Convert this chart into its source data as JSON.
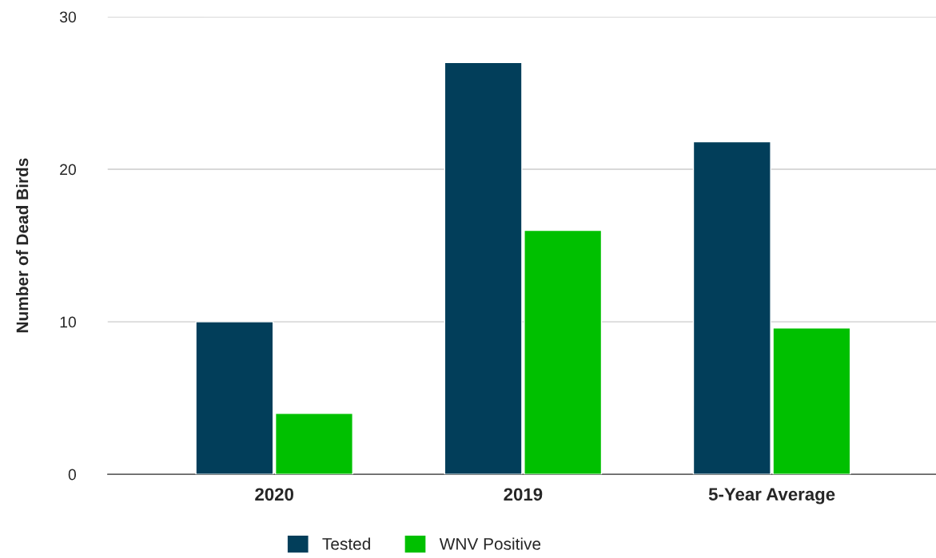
{
  "chart_data": {
    "type": "bar",
    "ylabel": "Number of Dead Birds",
    "categories": [
      "2020",
      "2019",
      "5-Year Average"
    ],
    "series": [
      {
        "name": "Tested",
        "color": "#023e5a",
        "values": [
          10,
          27,
          21.8
        ]
      },
      {
        "name": "WNV Positive",
        "color": "#00c000",
        "values": [
          4,
          16,
          9.6
        ]
      }
    ],
    "ylim": [
      0,
      30
    ],
    "yticks": [
      0,
      10,
      20,
      30
    ],
    "grid": "y",
    "legend": "bottom"
  }
}
